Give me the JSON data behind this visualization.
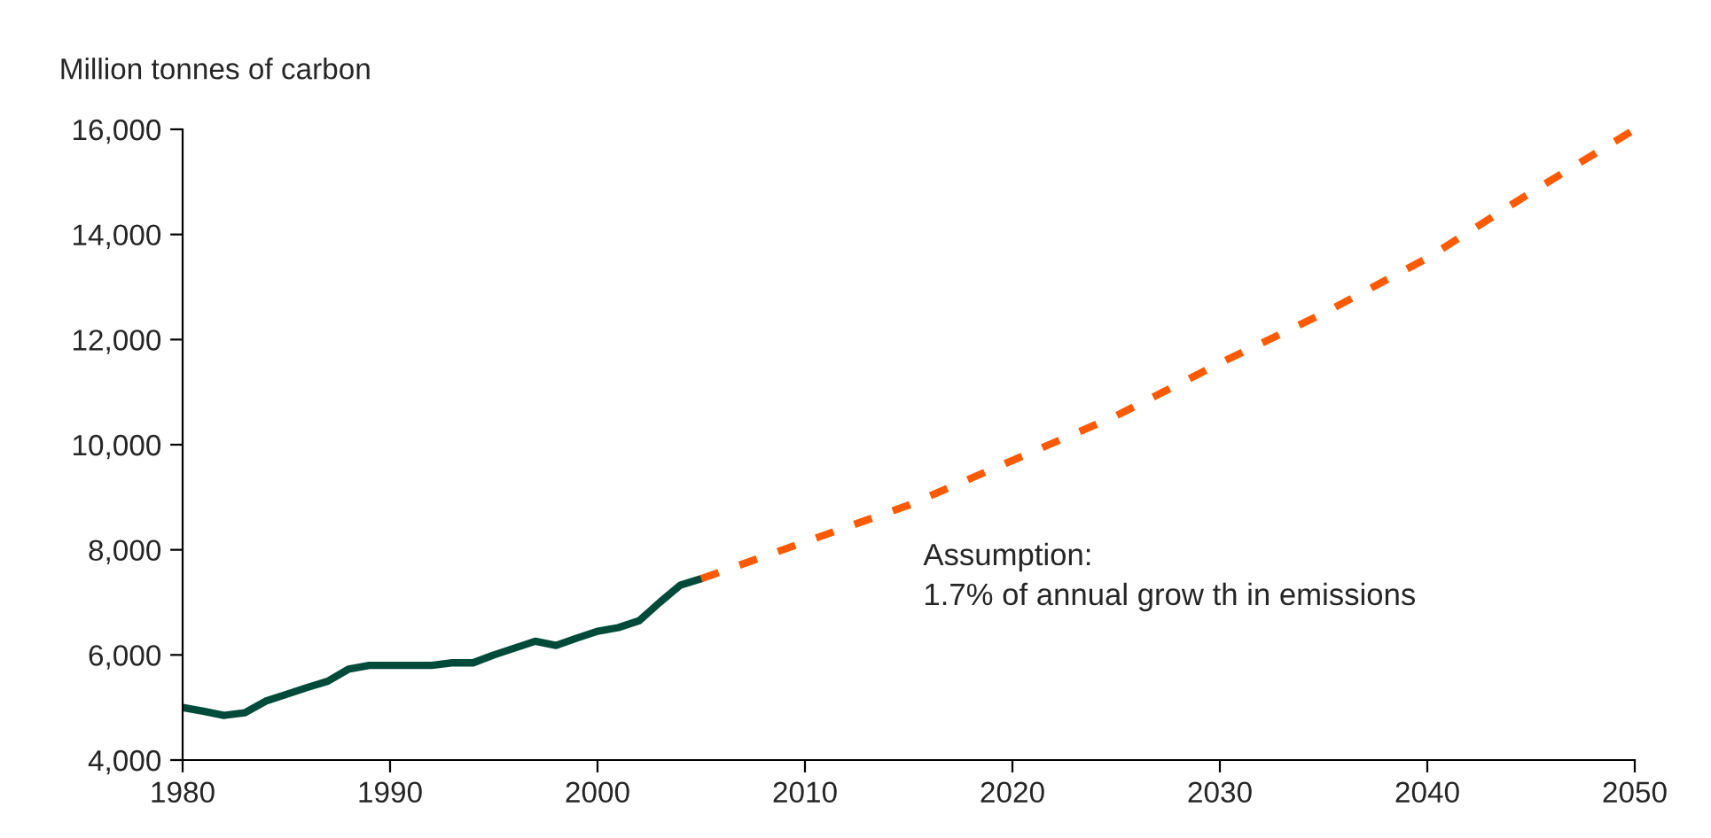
{
  "chart_data": {
    "type": "line",
    "ylabel": "Million tonnes of carbon",
    "annotations": [
      "Assumption:\n1.7% of annual grow th in emissions"
    ],
    "series": [
      {
        "color": "#004a3a",
        "line_style": "solid",
        "x": [
          1980,
          1981,
          1982,
          1983,
          1984,
          1985,
          1986,
          1987,
          1988,
          1989,
          1990,
          1991,
          1992,
          1993,
          1994,
          1995,
          1996,
          1997,
          1998,
          1999,
          2000,
          2001,
          2002,
          2003,
          2004,
          2005
        ],
        "values": [
          5000,
          4930,
          4850,
          4900,
          5120,
          5250,
          5380,
          5500,
          5730,
          5800,
          5800,
          5800,
          5800,
          5850,
          5850,
          6000,
          6130,
          6260,
          6180,
          6320,
          6450,
          6520,
          6650,
          7000,
          7330,
          7450
        ]
      },
      {
        "color": "#ff5a00",
        "line_style": "dashed",
        "x": [
          2005,
          2010,
          2015,
          2020,
          2025,
          2030,
          2035,
          2040,
          2045,
          2050
        ],
        "values": [
          7450,
          8150,
          8850,
          9700,
          10550,
          11550,
          12500,
          13550,
          14800,
          16000
        ]
      }
    ],
    "xlim": [
      1980,
      2050
    ],
    "xticks": [
      1980,
      1990,
      2000,
      2010,
      2020,
      2030,
      2040,
      2050
    ],
    "ylim": [
      4000,
      16000
    ],
    "yticks": [
      {
        "value": 4000,
        "label": "4,000"
      },
      {
        "value": 6000,
        "label": "6,000"
      },
      {
        "value": 8000,
        "label": "8,000"
      },
      {
        "value": 10000,
        "label": "10,000"
      },
      {
        "value": 12000,
        "label": "12,000"
      },
      {
        "value": 14000,
        "label": "14,000"
      },
      {
        "value": 16000,
        "label": "16,000"
      }
    ],
    "grid": false,
    "legend": false,
    "marker": "none"
  }
}
